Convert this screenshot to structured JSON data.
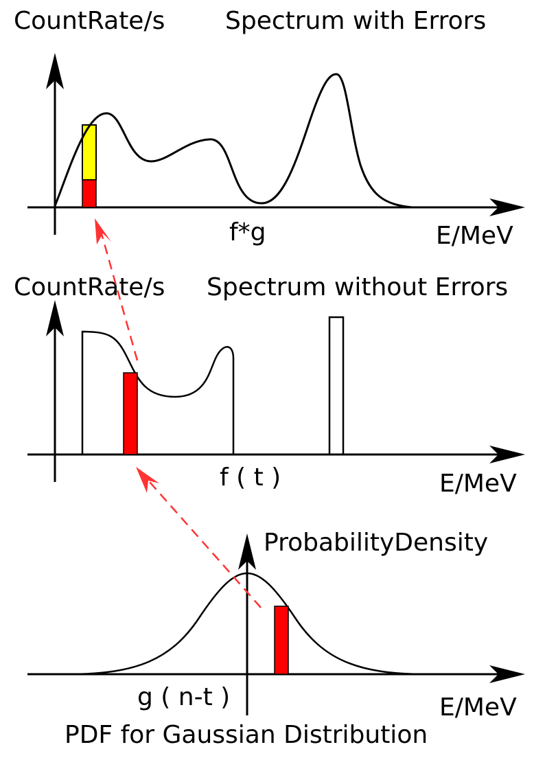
{
  "colors": {
    "stroke": "#000000",
    "highlight_red": "#ff0000",
    "highlight_yellow": "#ffff00",
    "arrow_dashed": "#ff3333"
  },
  "panel_top": {
    "ylabel": "CountRate/s",
    "title": "Spectrum with Errors",
    "function_label": "f*g",
    "xlabel": "E/MeV"
  },
  "panel_middle": {
    "ylabel": "CountRate/s",
    "title": "Spectrum without Errors",
    "function_label": "f ( t )",
    "xlabel": "E/MeV"
  },
  "panel_bottom": {
    "ylabel": "ProbabilityDensity",
    "function_label": "g ( n-t )",
    "xlabel": "E/MeV",
    "caption": "PDF for Gaussian Distribution"
  }
}
